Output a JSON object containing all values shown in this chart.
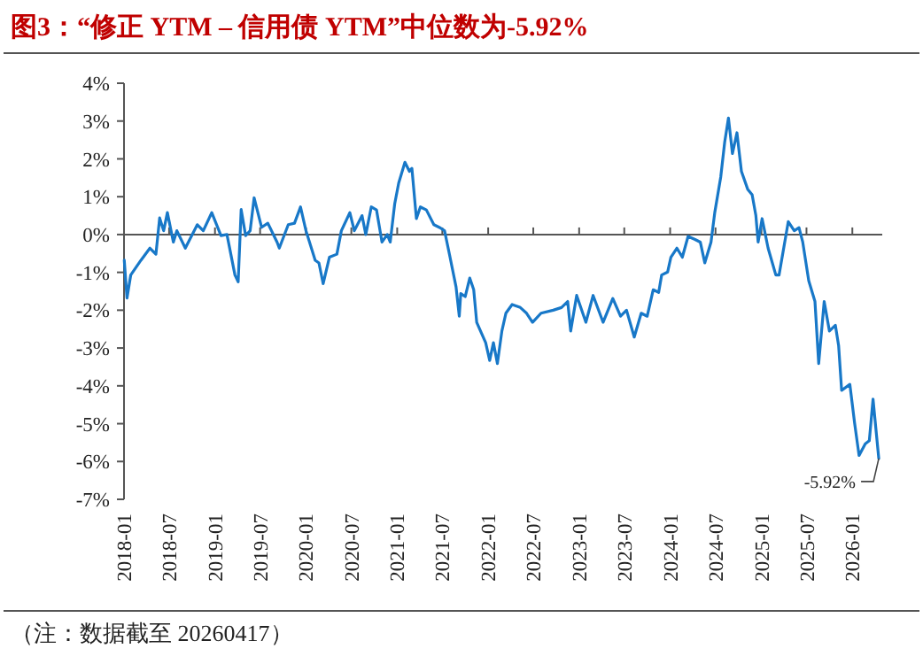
{
  "chart_data": {
    "type": "line",
    "title": "图3：“修正 YTM – 信用债 YTM”中位数为-5.92%",
    "x": [
      "2018-01-02",
      "2018-01-13",
      "2018-01-28",
      "2018-03-10",
      "2018-04-15",
      "2018-05-09",
      "2018-05-24",
      "2018-06-09",
      "2018-06-24",
      "2018-07-18",
      "2018-08-01",
      "2018-09-04",
      "2018-10-22",
      "2018-11-15",
      "2018-12-19",
      "2019-01-25",
      "2019-02-18",
      "2019-03-22",
      "2019-04-04",
      "2019-04-16",
      "2019-05-04",
      "2019-05-22",
      "2019-06-07",
      "2019-07-07",
      "2019-08-01",
      "2019-09-07",
      "2019-09-16",
      "2019-10-22",
      "2019-11-16",
      "2019-12-10",
      "2020-01-01",
      "2020-02-07",
      "2020-02-22",
      "2020-03-10",
      "2020-04-04",
      "2020-05-04",
      "2020-05-22",
      "2020-06-25",
      "2020-07-13",
      "2020-08-13",
      "2020-08-28",
      "2020-09-19",
      "2020-10-10",
      "2020-11-01",
      "2020-11-22",
      "2020-12-04",
      "2020-12-22",
      "2021-01-07",
      "2021-02-01",
      "2021-02-19",
      "2021-03-01",
      "2021-03-19",
      "2021-04-04",
      "2021-04-28",
      "2021-05-28",
      "2021-06-22",
      "2021-07-10",
      "2021-08-01",
      "2021-08-25",
      "2021-09-07",
      "2021-09-13",
      "2021-10-01",
      "2021-10-19",
      "2021-11-04",
      "2021-11-16",
      "2021-12-22",
      "2022-01-07",
      "2022-01-22",
      "2022-02-07",
      "2022-02-25",
      "2022-03-13",
      "2022-04-07",
      "2022-05-10",
      "2022-06-04",
      "2022-06-28",
      "2022-08-01",
      "2022-09-19",
      "2022-10-22",
      "2022-11-16",
      "2022-11-28",
      "2022-12-22",
      "2023-01-28",
      "2023-02-26",
      "2023-04-07",
      "2023-05-16",
      "2023-06-16",
      "2023-07-10",
      "2023-08-10",
      "2023-09-07",
      "2023-10-01",
      "2023-10-25",
      "2023-11-16",
      "2023-11-28",
      "2023-12-22",
      "2024-01-04",
      "2024-01-28",
      "2024-02-19",
      "2024-03-13",
      "2024-04-10",
      "2024-05-01",
      "2024-05-19",
      "2024-06-13",
      "2024-06-28",
      "2024-07-22",
      "2024-08-07",
      "2024-08-22",
      "2024-09-07",
      "2024-09-25",
      "2024-10-13",
      "2024-11-07",
      "2024-11-25",
      "2024-12-10",
      "2024-12-19",
      "2025-01-04",
      "2025-01-28",
      "2025-02-28",
      "2025-03-13",
      "2025-04-19",
      "2025-05-13",
      "2025-06-01",
      "2025-06-16",
      "2025-07-10",
      "2025-08-04",
      "2025-08-19",
      "2025-09-10",
      "2025-10-01",
      "2025-10-25",
      "2025-11-07",
      "2025-11-19",
      "2025-12-22",
      "2026-01-10",
      "2026-01-28",
      "2026-02-22",
      "2026-03-10",
      "2026-03-25",
      "2026-04-17"
    ],
    "series": [
      {
        "color": "#1878c8",
        "values": [
          -0.68,
          -1.68,
          -1.07,
          -0.68,
          -0.36,
          -0.52,
          0.44,
          0.1,
          0.58,
          -0.2,
          0.1,
          -0.36,
          0.26,
          0.1,
          0.58,
          -0.03,
          0,
          -1.07,
          -1.25,
          0.66,
          -0.03,
          0.1,
          0.97,
          0.19,
          0.3,
          -0.2,
          -0.36,
          0.26,
          0.3,
          0.73,
          0.1,
          -0.68,
          -0.75,
          -1.3,
          -0.6,
          -0.52,
          0.1,
          0.58,
          0.1,
          0.5,
          0,
          0.73,
          0.65,
          -0.2,
          0,
          -0.2,
          0.81,
          1.36,
          1.91,
          1.67,
          1.75,
          0.42,
          0.73,
          0.65,
          0.26,
          0.18,
          0.1,
          -0.6,
          -1.38,
          -2.16,
          -1.56,
          -1.64,
          -1.15,
          -1.46,
          -2.32,
          -2.86,
          -3.33,
          -2.86,
          -3.41,
          -2.55,
          -2.08,
          -1.85,
          -1.93,
          -2.08,
          -2.32,
          -2.08,
          -2,
          -1.93,
          -1.77,
          -2.55,
          -1.61,
          -2.32,
          -1.61,
          -2.32,
          -1.69,
          -2.16,
          -2,
          -2.71,
          -2.08,
          -2.16,
          -1.46,
          -1.53,
          -1.07,
          -0.99,
          -0.6,
          -0.36,
          -0.6,
          -0.05,
          -0.13,
          -0.2,
          -0.75,
          -0.2,
          0.58,
          1.52,
          2.45,
          3.08,
          2.14,
          2.69,
          1.67,
          1.2,
          1.05,
          0.5,
          -0.2,
          0.42,
          -0.36,
          -1.07,
          -1.07,
          0.34,
          0.1,
          0.18,
          -0.2,
          -1.22,
          -1.77,
          -3.41,
          -1.77,
          -2.55,
          -2.4,
          -2.94,
          -4.12,
          -3.96,
          -4.98,
          -5.84,
          -5.53,
          -5.45,
          -4.35,
          -5.92
        ]
      }
    ],
    "xlim": [
      "2018-01",
      "2026-05"
    ],
    "xticks": [
      "2018-01",
      "2018-07",
      "2019-01",
      "2019-07",
      "2020-01",
      "2020-07",
      "2021-01",
      "2021-07",
      "2022-01",
      "2022-07",
      "2023-01",
      "2023-07",
      "2024-01",
      "2024-07",
      "2025-01",
      "2025-07",
      "2026-01"
    ],
    "ylim": [
      -7,
      4
    ],
    "yticks": [
      {
        "value": 4,
        "label": "4%"
      },
      {
        "value": 3,
        "label": "3%"
      },
      {
        "value": 2,
        "label": "2%"
      },
      {
        "value": 1,
        "label": "1%"
      },
      {
        "value": 0,
        "label": "0%"
      },
      {
        "value": -1,
        "label": "-1%"
      },
      {
        "value": -2,
        "label": "-2%"
      },
      {
        "value": -3,
        "label": "-3%"
      },
      {
        "value": -4,
        "label": "-4%"
      },
      {
        "value": -5,
        "label": "-5%"
      },
      {
        "value": -6,
        "label": "-6%"
      },
      {
        "value": -7,
        "label": "-7%"
      }
    ],
    "annotations": [
      {
        "text": "-5.92%",
        "x": "2026-04-17",
        "y": -5.92
      },
      "（注：数据截至 20260417）"
    ],
    "marker": "none",
    "line_style": "solid"
  }
}
